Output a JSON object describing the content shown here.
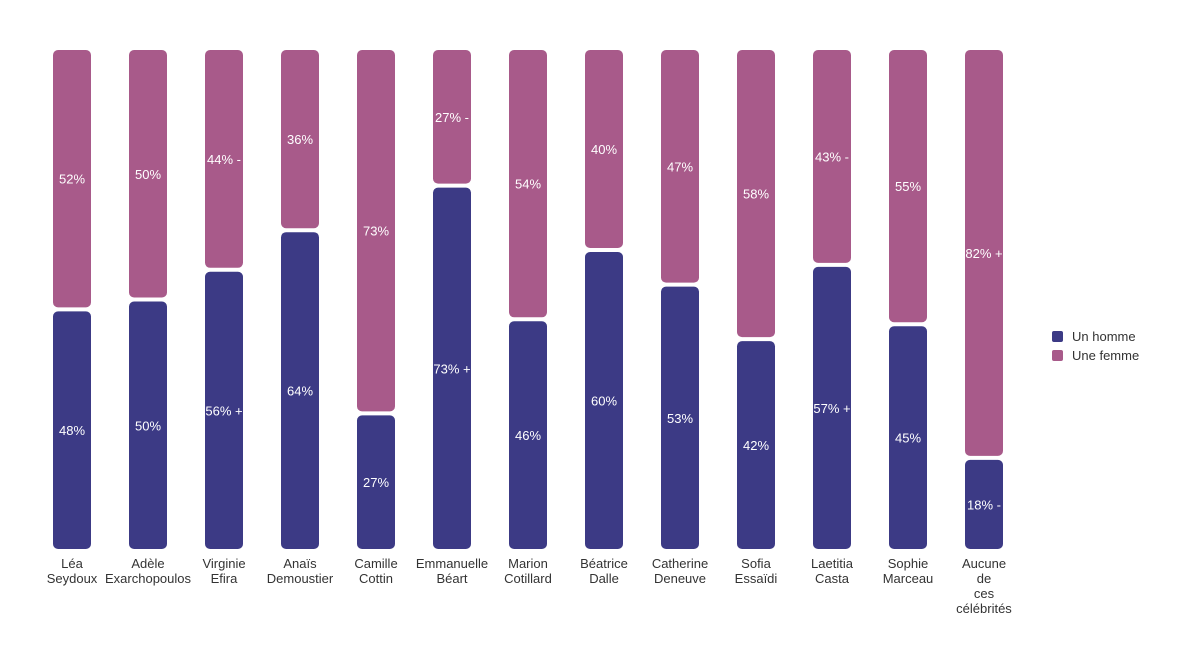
{
  "colors": {
    "homme": "#3c3a85",
    "femme": "#a85a8a"
  },
  "chart_data": {
    "type": "bar",
    "stacked": true,
    "categories": [
      [
        "Léa",
        "Seydoux"
      ],
      [
        "Adèle",
        "Exarchopoulos"
      ],
      [
        "Virginie",
        "Efira"
      ],
      [
        "Anaïs",
        "Demoustier"
      ],
      [
        "Camille",
        "Cottin"
      ],
      [
        "Emmanuelle",
        "Béart"
      ],
      [
        "Marion",
        "Cotillard"
      ],
      [
        "Béatrice",
        "Dalle"
      ],
      [
        "Catherine",
        "Deneuve"
      ],
      [
        "Sofia",
        "Essaïdi"
      ],
      [
        "Laetitia",
        "Casta"
      ],
      [
        "Sophie",
        "Marceau"
      ],
      [
        "Aucune",
        "de",
        "ces",
        "célébrités"
      ]
    ],
    "series": [
      {
        "name": "Un homme",
        "values": [
          48,
          50,
          56,
          64,
          27,
          73,
          46,
          60,
          53,
          42,
          57,
          45,
          18
        ],
        "labels": [
          "48%",
          "50%",
          "56% +",
          "64%",
          "27%",
          "73% +",
          "46%",
          "60%",
          "53%",
          "42%",
          "57% +",
          "45%",
          "18% -"
        ]
      },
      {
        "name": "Une femme",
        "values": [
          52,
          50,
          44,
          36,
          73,
          27,
          54,
          40,
          47,
          58,
          43,
          55,
          82
        ],
        "labels": [
          "52%",
          "50%",
          "44% -",
          "36%",
          "73%",
          "27% -",
          "54%",
          "40%",
          "47%",
          "58%",
          "43% -",
          "55%",
          "82% +"
        ]
      }
    ],
    "ylim": [
      0,
      100
    ],
    "legend": {
      "position": "right",
      "entries": [
        "Un homme",
        "Une femme"
      ]
    }
  }
}
